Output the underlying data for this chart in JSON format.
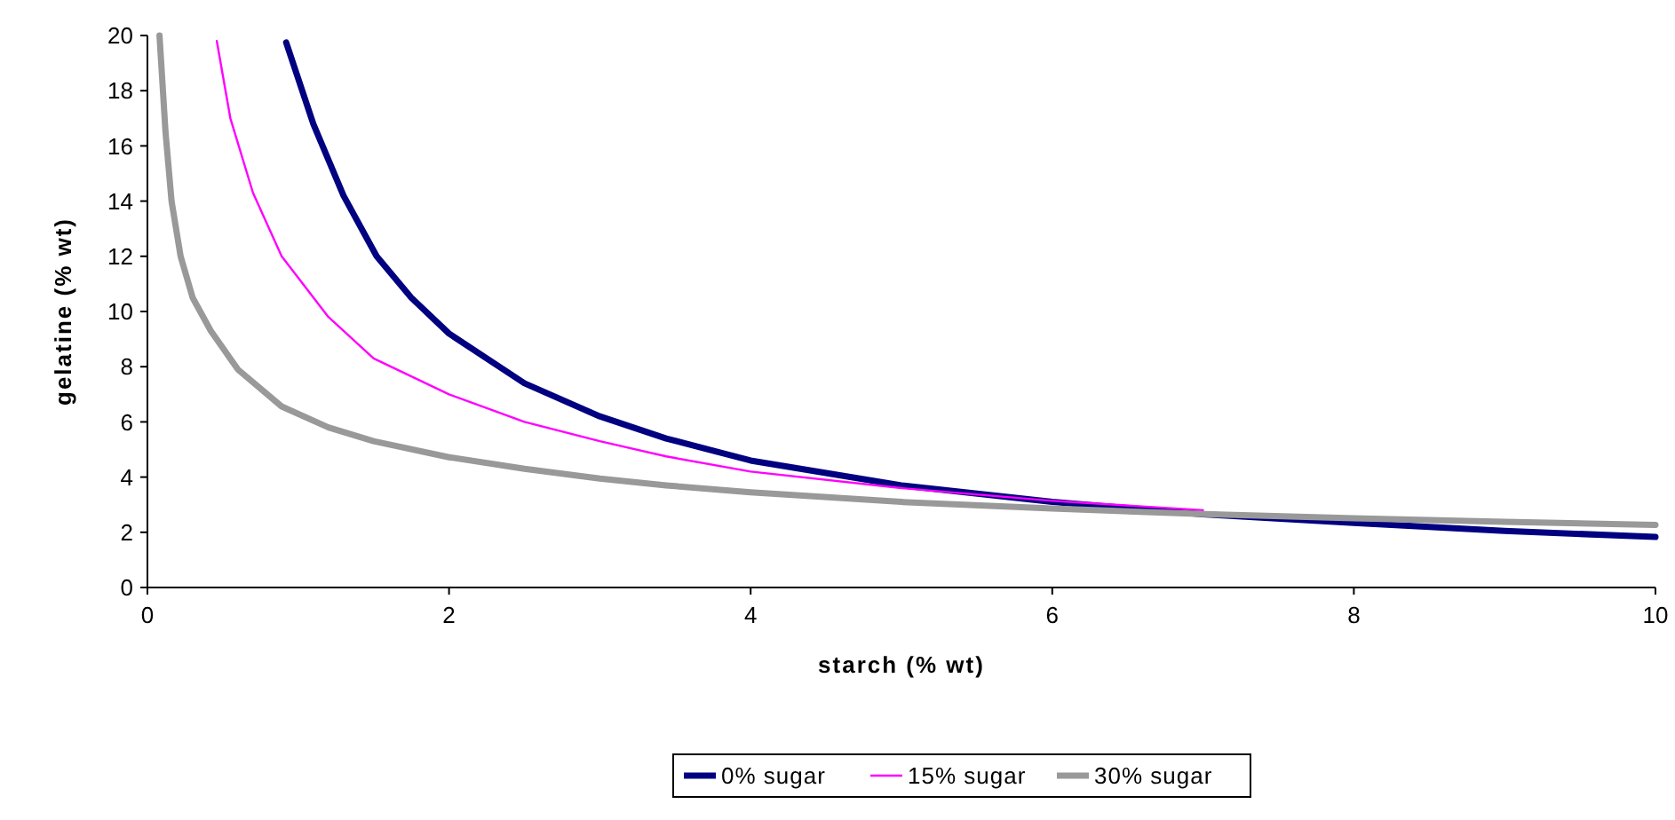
{
  "chart_data": {
    "type": "line",
    "xlabel": "starch (% wt)",
    "ylabel": "gelatine (% wt)",
    "xlim": [
      0,
      10
    ],
    "xticks": [
      0,
      2,
      4,
      6,
      8,
      10
    ],
    "ylim": [
      0,
      20
    ],
    "yticks": [
      0,
      2,
      4,
      6,
      8,
      10,
      12,
      14,
      16,
      18,
      20
    ],
    "grid": false,
    "legend": "bottom",
    "marker": "none",
    "series": [
      {
        "name": "0% sugar",
        "color": "#000080",
        "x": [
          0.92,
          1.1,
          1.3,
          1.52,
          1.75,
          2,
          2.5,
          3,
          3.44,
          4,
          5,
          6,
          7,
          8,
          9,
          10
        ],
        "values": [
          19.75,
          16.8,
          14.2,
          12,
          10.5,
          9.2,
          7.4,
          6.2,
          5.4,
          4.6,
          3.7,
          3.1,
          2.65,
          2.34,
          2.05,
          1.83
        ]
      },
      {
        "name": "15% sugar",
        "color": "#ff00ff",
        "x": [
          0.46,
          0.55,
          0.7,
          0.89,
          1.2,
          1.5,
          2,
          2.5,
          3,
          3.44,
          4,
          5,
          6,
          7
        ],
        "values": [
          19.8,
          17,
          14.3,
          12,
          9.8,
          8.3,
          7,
          6,
          5.3,
          4.75,
          4.2,
          3.6,
          3.14,
          2.8
        ]
      },
      {
        "name": "30% sugar",
        "color": "#999999",
        "x": [
          0.08,
          0.12,
          0.16,
          0.22,
          0.3,
          0.42,
          0.6,
          0.89,
          1.2,
          1.5,
          2,
          2.5,
          3,
          3.44,
          4,
          5,
          6,
          7,
          8,
          9,
          10
        ],
        "values": [
          20,
          16.5,
          14,
          12,
          10.5,
          9.3,
          7.9,
          6.56,
          5.8,
          5.3,
          4.72,
          4.3,
          3.95,
          3.7,
          3.45,
          3.1,
          2.86,
          2.66,
          2.51,
          2.38,
          2.27
        ]
      }
    ]
  }
}
